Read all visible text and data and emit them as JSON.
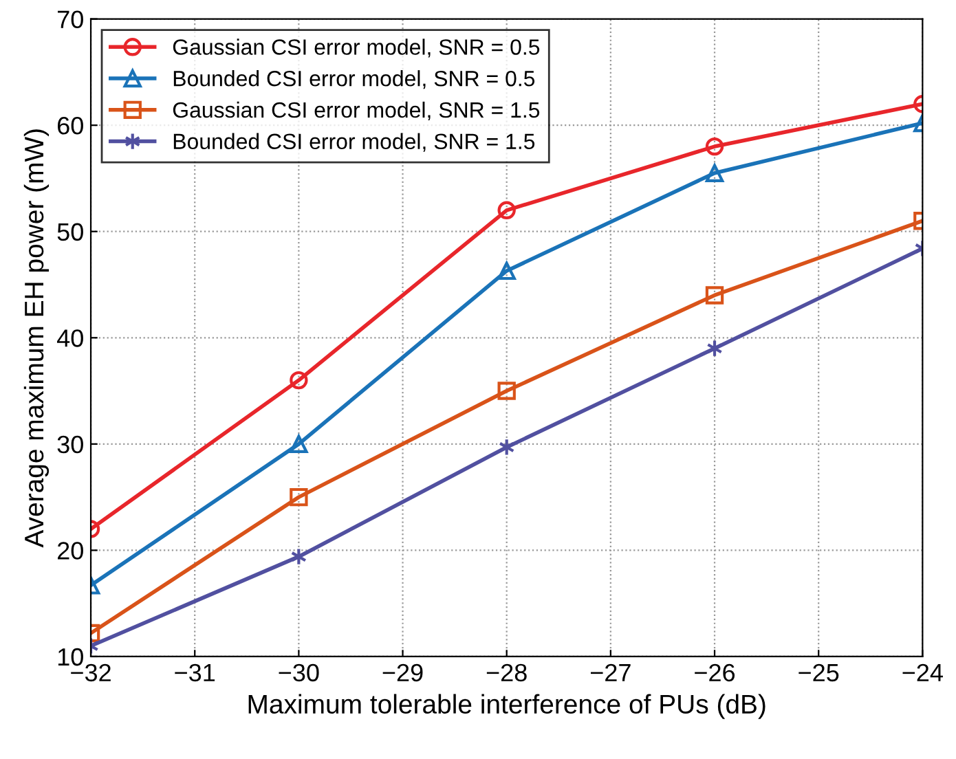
{
  "chart_data": {
    "type": "line",
    "xlabel": "Maximum tolerable interference of PUs (dB)",
    "ylabel": "Average maximum EH power (mW)",
    "x": [
      -32,
      -30,
      -28,
      -26,
      -24
    ],
    "series": [
      {
        "name": "Gaussian CSI error model, SNR = 0.5",
        "color": "#e8262b",
        "marker": "circle",
        "values": [
          22,
          36,
          52,
          58,
          62
        ]
      },
      {
        "name": "Bounded CSI error model, SNR = 0.5",
        "color": "#1a73b8",
        "marker": "triangle",
        "values": [
          16.7,
          30,
          46.3,
          55.5,
          60.2
        ]
      },
      {
        "name": "Gaussian CSI error model, SNR = 1.5",
        "color": "#d95319",
        "marker": "square",
        "values": [
          12.2,
          25,
          35,
          44,
          51
        ]
      },
      {
        "name": "Bounded CSI error model, SNR = 1.5",
        "color": "#5150a0",
        "marker": "cross",
        "values": [
          11,
          19.4,
          29.7,
          39,
          48.4
        ]
      }
    ],
    "xlim": [
      -32,
      -24
    ],
    "xticks": [
      {
        "value": -32,
        "label": "−32"
      },
      {
        "value": -31,
        "label": "−31"
      },
      {
        "value": -30,
        "label": "−30"
      },
      {
        "value": -29,
        "label": "−29"
      },
      {
        "value": -28,
        "label": "−28"
      },
      {
        "value": -27,
        "label": "−27"
      },
      {
        "value": -26,
        "label": "−26"
      },
      {
        "value": -25,
        "label": "−25"
      },
      {
        "value": -24,
        "label": "−24"
      }
    ],
    "ylim": [
      10,
      70
    ],
    "yticks": [
      10,
      20,
      30,
      40,
      50,
      60,
      70
    ],
    "grid": true,
    "legend": "top left",
    "line_style": "solid"
  }
}
